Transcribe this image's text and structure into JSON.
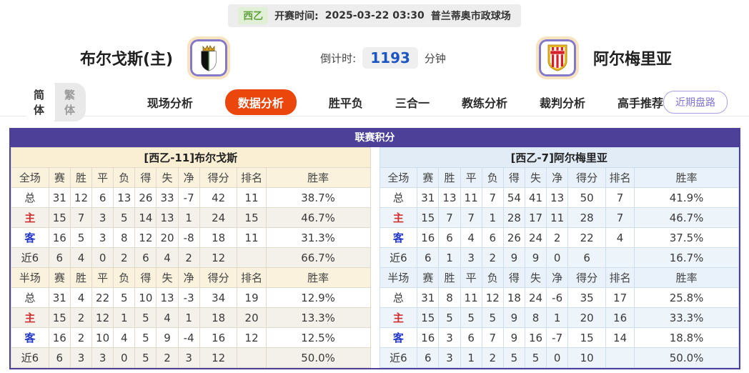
{
  "top_bar": {
    "league": "西乙",
    "kickoff_label": "开赛时间:",
    "kickoff_time": "2025-03-22 03:30",
    "venue": "普兰蒂奥市政球场"
  },
  "header": {
    "home_name": "布尔戈斯(主)",
    "away_name": "阿尔梅里亚",
    "countdown_label": "倒计时:",
    "countdown_value": "1193",
    "countdown_unit": "分钟"
  },
  "nav": {
    "lang_simplified": "简体",
    "lang_traditional": "繁体",
    "tabs": [
      {
        "label": "现场分析",
        "active": false
      },
      {
        "label": "数据分析",
        "active": true
      },
      {
        "label": "胜平负",
        "active": false
      },
      {
        "label": "三合一",
        "active": false
      },
      {
        "label": "教练分析",
        "active": false
      },
      {
        "label": "裁判分析",
        "active": false
      },
      {
        "label": "高手推荐",
        "active": false
      }
    ],
    "recent_button": "近期盘路"
  },
  "icons": {
    "home_badge": "burgos-crest",
    "away_badge": "almeria-crest"
  },
  "colors": {
    "accent_purple": "#4c4099",
    "active_tab_orange": "#eb470c",
    "countdown_blue": "#1d55c3",
    "league_green": "#61a33e",
    "home_panel_cream": "#faeed3",
    "away_panel_blue": "#e2ecf7",
    "home_row_red": "#d12f2f",
    "away_row_blue": "#2438c8"
  },
  "league_table": {
    "title": "联赛积分",
    "columns_full": [
      "全场",
      "赛",
      "胜",
      "平",
      "负",
      "得",
      "失",
      "净",
      "得分",
      "排名",
      "胜率"
    ],
    "columns_half": [
      "半场",
      "赛",
      "胜",
      "平",
      "负",
      "得",
      "失",
      "净",
      "得分",
      "排名",
      "胜率"
    ],
    "home": {
      "team_header": "[西乙-11]布尔戈斯",
      "full": [
        [
          "总",
          "31",
          "12",
          "6",
          "13",
          "26",
          "33",
          "-7",
          "42",
          "11",
          "38.7%"
        ],
        [
          "主",
          "15",
          "7",
          "3",
          "5",
          "14",
          "13",
          "1",
          "24",
          "15",
          "46.7%"
        ],
        [
          "客",
          "16",
          "5",
          "3",
          "8",
          "12",
          "20",
          "-8",
          "18",
          "11",
          "31.3%"
        ],
        [
          "近6",
          "6",
          "4",
          "0",
          "2",
          "6",
          "4",
          "2",
          "12",
          "",
          "66.7%"
        ]
      ],
      "half": [
        [
          "总",
          "31",
          "4",
          "22",
          "5",
          "10",
          "13",
          "-3",
          "34",
          "19",
          "12.9%"
        ],
        [
          "主",
          "15",
          "2",
          "12",
          "1",
          "5",
          "4",
          "1",
          "18",
          "20",
          "13.3%"
        ],
        [
          "客",
          "16",
          "2",
          "10",
          "4",
          "5",
          "9",
          "-4",
          "16",
          "12",
          "12.5%"
        ],
        [
          "近6",
          "6",
          "3",
          "3",
          "0",
          "5",
          "2",
          "3",
          "12",
          "",
          "50.0%"
        ]
      ]
    },
    "away": {
      "team_header": "[西乙-7]阿尔梅里亚",
      "full": [
        [
          "总",
          "31",
          "13",
          "11",
          "7",
          "54",
          "41",
          "13",
          "50",
          "7",
          "41.9%"
        ],
        [
          "主",
          "15",
          "7",
          "7",
          "1",
          "28",
          "17",
          "11",
          "28",
          "7",
          "46.7%"
        ],
        [
          "客",
          "16",
          "6",
          "4",
          "6",
          "26",
          "24",
          "2",
          "22",
          "4",
          "37.5%"
        ],
        [
          "近6",
          "6",
          "1",
          "3",
          "2",
          "9",
          "9",
          "0",
          "6",
          "",
          "16.7%"
        ]
      ],
      "half": [
        [
          "总",
          "31",
          "8",
          "11",
          "12",
          "18",
          "24",
          "-6",
          "35",
          "17",
          "25.8%"
        ],
        [
          "主",
          "15",
          "5",
          "5",
          "5",
          "9",
          "8",
          "1",
          "20",
          "16",
          "33.3%"
        ],
        [
          "客",
          "16",
          "3",
          "6",
          "7",
          "9",
          "16",
          "-7",
          "15",
          "14",
          "18.8%"
        ],
        [
          "近6",
          "6",
          "3",
          "1",
          "2",
          "5",
          "5",
          "0",
          "10",
          "",
          "50.0%"
        ]
      ]
    }
  }
}
